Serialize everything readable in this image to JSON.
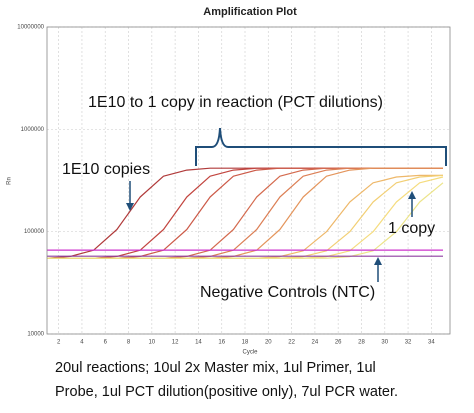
{
  "chart_data": {
    "type": "line",
    "title": "Amplification Plot",
    "xlabel": "Cycle",
    "ylabel": "Rn",
    "log_y": true,
    "grid": true,
    "xlim": [
      1,
      35.6
    ],
    "ylim": [
      10000,
      10000000
    ],
    "xticks": [
      2,
      4,
      6,
      8,
      10,
      12,
      14,
      16,
      18,
      20,
      22,
      24,
      26,
      28,
      30,
      32,
      34
    ],
    "yticks": [
      10000,
      100000,
      1000000,
      10000000
    ],
    "x": [
      1,
      3,
      5,
      7,
      9,
      11,
      13,
      15,
      17,
      19,
      21,
      23,
      25,
      27,
      29,
      31,
      33,
      35
    ],
    "series": [
      {
        "color": "#b03a3a",
        "values": [
          55000,
          57300,
          65900,
          105000,
          218000,
          348000,
          400000,
          417000,
          417000,
          417000,
          417000,
          417000,
          417000,
          417000,
          417000,
          417000,
          417000,
          417000
        ]
      },
      {
        "color": "#c2453f",
        "values": [
          55000,
          55000,
          55000,
          57300,
          65900,
          105000,
          218000,
          348000,
          400000,
          417000,
          417000,
          417000,
          417000,
          417000,
          417000,
          417000,
          417000,
          417000
        ]
      },
      {
        "color": "#cc5a48",
        "values": [
          55000,
          55000,
          55000,
          55000,
          57300,
          65900,
          105000,
          218000,
          348000,
          400000,
          417000,
          417000,
          417000,
          417000,
          417000,
          417000,
          417000,
          417000
        ]
      },
      {
        "color": "#d46a4e",
        "values": [
          55000,
          55000,
          55000,
          55000,
          55000,
          55000,
          57300,
          65900,
          105000,
          218000,
          348000,
          400000,
          417000,
          417000,
          417000,
          417000,
          417000,
          417000
        ]
      },
      {
        "color": "#dc7f55",
        "values": [
          55000,
          55000,
          55000,
          55000,
          55000,
          55000,
          55000,
          57300,
          65900,
          105000,
          218000,
          348000,
          400000,
          417000,
          417000,
          417000,
          417000,
          417000
        ]
      },
      {
        "color": "#e4955c",
        "values": [
          55000,
          55000,
          55000,
          55000,
          55000,
          55000,
          55000,
          55000,
          57300,
          65900,
          105000,
          218000,
          348000,
          400000,
          417000,
          417000,
          417000,
          417000
        ]
      },
      {
        "color": "#eeb86a",
        "values": [
          55000,
          55000,
          55000,
          55000,
          55000,
          55000,
          55000,
          55000,
          55000,
          55000,
          57000,
          65000,
          100000,
          195000,
          300000,
          342000,
          355000,
          355000
        ]
      },
      {
        "color": "#f2cf74",
        "values": [
          55000,
          55000,
          55000,
          55000,
          55000,
          55000,
          55000,
          55000,
          55000,
          55000,
          55000,
          57000,
          65000,
          100000,
          195000,
          300000,
          342000,
          355000
        ]
      },
      {
        "color": "#f5dc7e",
        "values": [
          55000,
          55000,
          55000,
          55000,
          55000,
          55000,
          55000,
          55000,
          55000,
          55000,
          55000,
          55000,
          57000,
          65000,
          100000,
          195000,
          300000,
          342000
        ]
      },
      {
        "color": "#ece48a",
        "values": [
          55000,
          55000,
          55000,
          55000,
          55000,
          55000,
          55000,
          55000,
          55000,
          55000,
          55000,
          55000,
          55000,
          57000,
          65000,
          100000,
          195000,
          300000
        ]
      },
      {
        "color": "#cc33cc",
        "values": [
          66000,
          66000,
          66000,
          66000,
          66000,
          66000,
          66000,
          66000,
          66000,
          66000,
          66000,
          66000,
          66000,
          66000,
          66000,
          66000,
          66000,
          66000
        ]
      },
      {
        "color": "#8e3fa0",
        "values": [
          57600,
          57600,
          57600,
          57600,
          57600,
          57600,
          57600,
          57600,
          57600,
          57600,
          57600,
          57600,
          57600,
          57600,
          57600,
          57600,
          57600,
          57600
        ]
      }
    ],
    "annotations": [
      "1E10 to 1 copy in reaction (PCT dilutions)",
      "1E10 copies",
      "1 copy",
      "Negative Controls (NTC)"
    ],
    "caption": [
      "20ul reactions; 10ul 2x Master mix, 1ul Primer, 1ul",
      "Probe, 1ul PCT dilution(positive only), 7ul PCR water."
    ]
  }
}
